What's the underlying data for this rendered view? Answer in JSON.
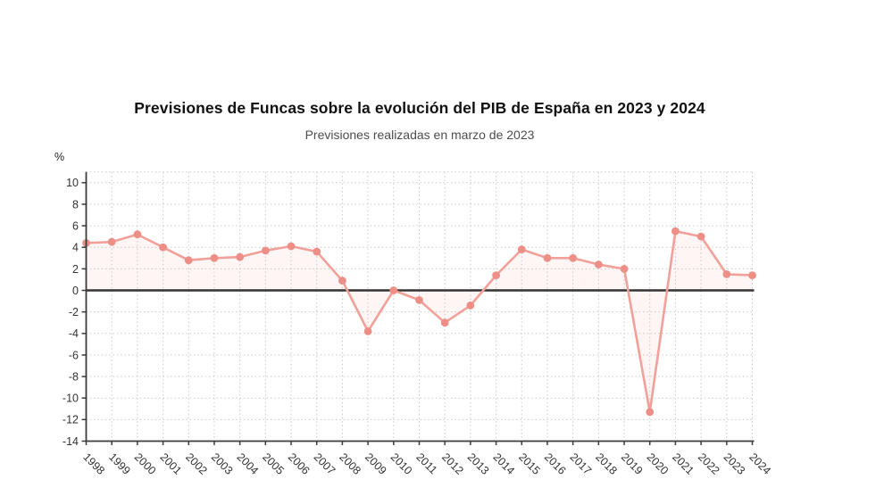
{
  "header": {
    "title": "Previsiones de Funcas sobre la evolución del PIB de España en 2023 y 2024",
    "subtitle": "Previsiones realizadas en marzo de 2023"
  },
  "chart_data": {
    "type": "line",
    "title": "Previsiones de Funcas sobre la evolución del PIB de España en 2023 y 2024",
    "subtitle": "Previsiones realizadas en marzo de 2023",
    "unit_label": "%",
    "categories": [
      "1998",
      "1999",
      "2000",
      "2001",
      "2002",
      "2003",
      "2004",
      "2005",
      "2006",
      "2007",
      "2008",
      "2009",
      "2010",
      "2011",
      "2012",
      "2013",
      "2014",
      "2015",
      "2016",
      "2017",
      "2018",
      "2019",
      "2020",
      "2021",
      "2022",
      "2023",
      "2024"
    ],
    "values": [
      4.4,
      4.5,
      5.2,
      4.0,
      2.8,
      3.0,
      3.1,
      3.7,
      4.1,
      3.6,
      0.9,
      -3.8,
      0.0,
      -0.9,
      -3.0,
      -1.4,
      1.4,
      3.8,
      3.0,
      3.0,
      2.4,
      2.0,
      -11.3,
      5.5,
      5.0,
      1.5,
      1.4
    ],
    "ylim": [
      -14,
      11
    ],
    "yticks": [
      10,
      8,
      6,
      4,
      2,
      0,
      -2,
      -4,
      -6,
      -8,
      -10,
      -12,
      -14
    ],
    "grid": true,
    "legend": "none",
    "colors": {
      "line": "#f2a19a",
      "marker": "#ee8f87",
      "fill": "rgba(241,154,146,0.09)",
      "axis": "#3c3c3c",
      "zero_line": "#333333",
      "grid": "#c9c9c9",
      "title": "#111111",
      "subtitle": "#4d4d4d",
      "tick_label": "#333333"
    }
  }
}
